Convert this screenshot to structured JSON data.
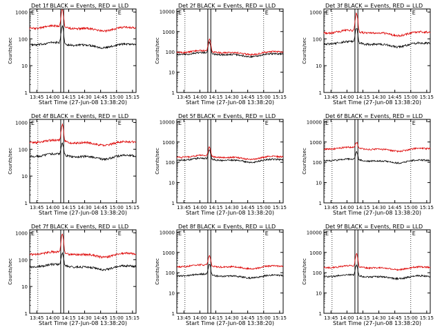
{
  "page": {
    "start_time_label": "Start Time (27-Jun-08 13:38:20)",
    "ylabel": "Counts/sec"
  },
  "colors": {
    "events": "#000000",
    "lld": "#dd0000",
    "axis": "#000000",
    "background": "#ffffff"
  },
  "chart_data": [
    {
      "type": "line",
      "title": "Det 1f BLACK = Events, RED = LLD",
      "xlabel": "Start Time (27-Jun-08 13:38:20)",
      "ylabel": "Counts/sec",
      "yscale": "log",
      "xticks": [
        "13:45",
        "14:00",
        "14:15",
        "14:30",
        "14:45",
        "15:00",
        "15:15"
      ],
      "yticks": [
        "1",
        "10",
        "100",
        "1000"
      ],
      "ylim": [
        1,
        1300
      ],
      "series": [
        {
          "name": "Events",
          "baseline": 60,
          "peak": 290
        },
        {
          "name": "LLD",
          "baseline": 250,
          "peak": 1200
        }
      ]
    },
    {
      "type": "line",
      "title": "Det 2f BLACK = Events, RED = LLD",
      "xlabel": "Start Time (27-Jun-08 13:38:20)",
      "ylabel": "Counts/sec",
      "yscale": "log",
      "xticks": [
        "13:45",
        "14:00",
        "14:15",
        "14:30",
        "14:45",
        "15:00",
        "15:15"
      ],
      "yticks": [
        "1",
        "10",
        "100",
        "1000",
        "10000"
      ],
      "ylim": [
        1,
        13000
      ],
      "series": [
        {
          "name": "Events",
          "baseline": 75,
          "peak": 300
        },
        {
          "name": "LLD",
          "baseline": 95,
          "peak": 420
        }
      ]
    },
    {
      "type": "line",
      "title": "Det 3f BLACK = Events, RED = LLD",
      "xlabel": "Start Time (27-Jun-08 13:38:20)",
      "ylabel": "Counts/sec",
      "yscale": "log",
      "xticks": [
        "13:45",
        "14:00",
        "14:15",
        "14:30",
        "14:45",
        "15:00",
        "15:15"
      ],
      "yticks": [
        "1",
        "10",
        "100",
        "1000"
      ],
      "ylim": [
        1,
        1300
      ],
      "series": [
        {
          "name": "Events",
          "baseline": 65,
          "peak": 250
        },
        {
          "name": "LLD",
          "baseline": 170,
          "peak": 900
        }
      ]
    },
    {
      "type": "line",
      "title": "Det 4f BLACK = Events, RED = LLD",
      "xlabel": "Start Time (27-Jun-08 13:38:20)",
      "ylabel": "Counts/sec",
      "yscale": "log",
      "xticks": [
        "13:45",
        "14:00",
        "14:15",
        "14:30",
        "14:45",
        "15:00",
        "15:15"
      ],
      "yticks": [
        "1",
        "10",
        "100",
        "1000"
      ],
      "ylim": [
        1,
        1300
      ],
      "series": [
        {
          "name": "Events",
          "baseline": 55,
          "peak": 160
        },
        {
          "name": "LLD",
          "baseline": 180,
          "peak": 800
        }
      ]
    },
    {
      "type": "line",
      "title": "Det 5f BLACK = Events, RED = LLD",
      "xlabel": "Start Time (27-Jun-08 13:38:20)",
      "ylabel": "Counts/sec",
      "yscale": "log",
      "xticks": [
        "13:45",
        "14:00",
        "14:15",
        "14:30",
        "14:45",
        "15:00",
        "15:15"
      ],
      "yticks": [
        "1",
        "10",
        "100",
        "1000",
        "10000"
      ],
      "ylim": [
        1,
        13000
      ],
      "series": [
        {
          "name": "Events",
          "baseline": 130,
          "peak": 400
        },
        {
          "name": "LLD",
          "baseline": 180,
          "peak": 550
        }
      ]
    },
    {
      "type": "line",
      "title": "Det 6f BLACK = Events, RED = LLD",
      "xlabel": "Start Time (27-Jun-08 13:38:20)",
      "ylabel": "Counts/sec",
      "yscale": "log",
      "xticks": [
        "13:45",
        "14:00",
        "14:15",
        "14:30",
        "14:45",
        "15:00",
        "15:15"
      ],
      "yticks": [
        "1",
        "10",
        "100",
        "1000",
        "10000"
      ],
      "ylim": [
        1,
        13000
      ],
      "series": [
        {
          "name": "Events",
          "baseline": 120,
          "peak": 300
        },
        {
          "name": "LLD",
          "baseline": 450,
          "peak": 900
        }
      ]
    },
    {
      "type": "line",
      "title": "Det 7f BLACK = Events, RED = LLD",
      "xlabel": "Start Time (27-Jun-08 13:38:20)",
      "ylabel": "Counts/sec",
      "yscale": "log",
      "xticks": [
        "13:45",
        "14:00",
        "14:15",
        "14:30",
        "14:45",
        "15:00",
        "15:15"
      ],
      "yticks": [
        "1",
        "10",
        "100",
        "1000"
      ],
      "ylim": [
        1,
        1300
      ],
      "series": [
        {
          "name": "Events",
          "baseline": 55,
          "peak": 170
        },
        {
          "name": "LLD",
          "baseline": 160,
          "peak": 850
        }
      ]
    },
    {
      "type": "line",
      "title": "Det 8f BLACK = Events, RED = LLD",
      "xlabel": "Start Time (27-Jun-08 13:38:20)",
      "ylabel": "Counts/sec",
      "yscale": "log",
      "xticks": [
        "13:45",
        "14:00",
        "14:15",
        "14:30",
        "14:45",
        "15:00",
        "15:15"
      ],
      "yticks": [
        "1",
        "10",
        "100",
        "1000",
        "10000"
      ],
      "ylim": [
        1,
        13000
      ],
      "series": [
        {
          "name": "Events",
          "baseline": 70,
          "peak": 250
        },
        {
          "name": "LLD",
          "baseline": 200,
          "peak": 700
        }
      ]
    },
    {
      "type": "line",
      "title": "Det 9f BLACK = Events, RED = LLD",
      "xlabel": "Start Time (27-Jun-08 13:38:20)",
      "ylabel": "Counts/sec",
      "yscale": "log",
      "xticks": [
        "13:45",
        "14:00",
        "14:15",
        "14:30",
        "14:45",
        "15:00",
        "15:15"
      ],
      "yticks": [
        "1",
        "10",
        "100",
        "1000",
        "10000"
      ],
      "ylim": [
        1,
        13000
      ],
      "series": [
        {
          "name": "Events",
          "baseline": 65,
          "peak": 220
        },
        {
          "name": "LLD",
          "baseline": 180,
          "peak": 800
        }
      ]
    }
  ]
}
